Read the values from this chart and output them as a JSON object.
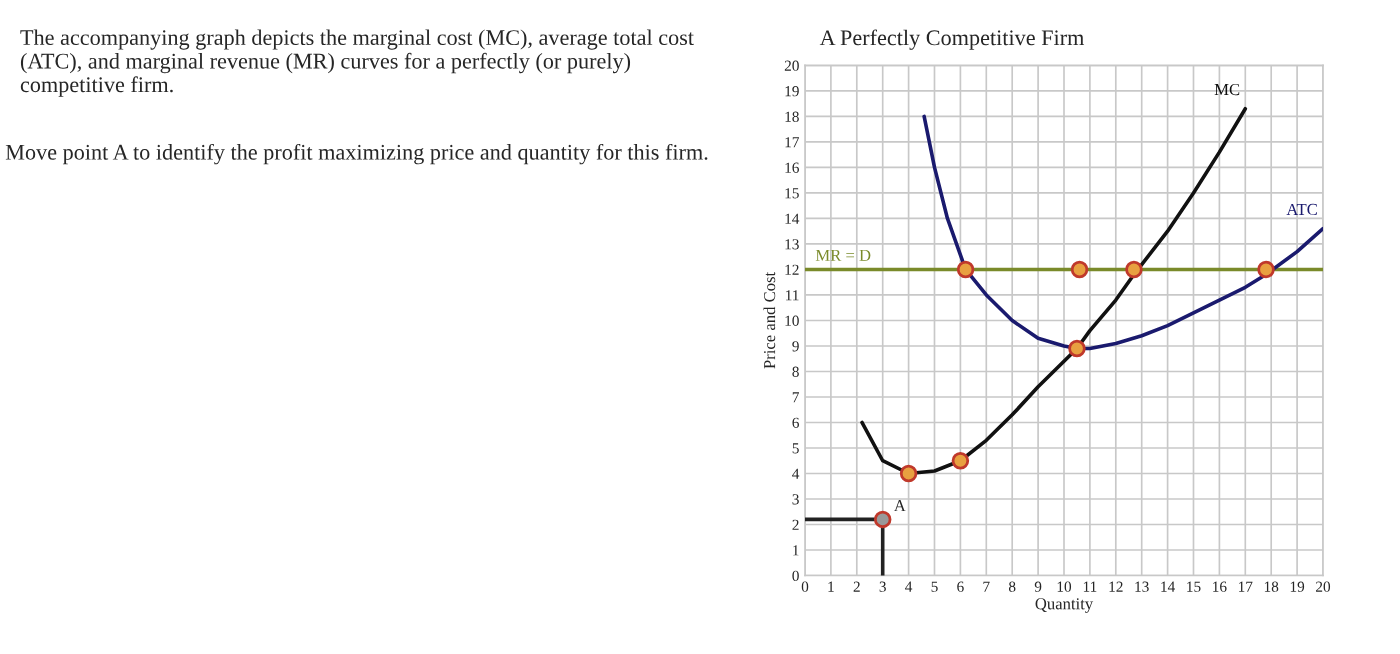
{
  "chart_data": {
    "type": "line",
    "title": "A Perfectly Competitive Firm",
    "xlabel": "Quantity",
    "ylabel": "Price and Cost",
    "xlim": [
      0,
      20
    ],
    "ylim": [
      0,
      20
    ],
    "xticks": [
      0,
      1,
      2,
      3,
      4,
      5,
      6,
      7,
      8,
      9,
      10,
      11,
      12,
      13,
      14,
      15,
      16,
      17,
      18,
      19,
      20
    ],
    "yticks": [
      0,
      1,
      2,
      3,
      4,
      5,
      6,
      7,
      8,
      9,
      10,
      11,
      12,
      13,
      14,
      15,
      16,
      17,
      18,
      19,
      20
    ],
    "grid": true,
    "legend": false,
    "series": [
      {
        "name": "MR = D",
        "color": "#7a8a2a",
        "x": [
          0,
          20
        ],
        "values": [
          12,
          12
        ]
      },
      {
        "name": "MC",
        "color": "#111111",
        "x": [
          2.2,
          3,
          4,
          5,
          6,
          7,
          8,
          9,
          10,
          10.5,
          11,
          12,
          12.7,
          14,
          15,
          16,
          17
        ],
        "values": [
          6,
          4.5,
          4,
          4.1,
          4.5,
          5.3,
          6.3,
          7.4,
          8.4,
          8.9,
          9.6,
          10.8,
          11.8,
          13.5,
          15,
          16.6,
          18.3
        ]
      },
      {
        "name": "ATC",
        "color": "#1a1a6e",
        "x": [
          4.6,
          5,
          5.5,
          6.2,
          7,
          8,
          9,
          10,
          10.5,
          11,
          12,
          13,
          14,
          15,
          16,
          17,
          17.8,
          19,
          20
        ],
        "values": [
          18,
          16,
          14,
          12,
          11,
          10,
          9.3,
          9,
          8.9,
          8.9,
          9.1,
          9.4,
          9.8,
          10.3,
          10.8,
          11.3,
          11.8,
          12.7,
          13.6
        ]
      },
      {
        "color": "#222222",
        "x": [
          0,
          3,
          3
        ],
        "values": [
          2.2,
          2.2,
          0
        ]
      },
      {
        "type": "scatter",
        "color": "#e8a040",
        "marker": "circle",
        "x": [
          6.2,
          10.6,
          12.7,
          17.8,
          10.5,
          4,
          6
        ],
        "values": [
          12,
          12,
          12,
          12,
          8.9,
          4,
          4.5
        ]
      },
      {
        "type": "scatter",
        "color": "#999999",
        "marker": "circle",
        "x": [
          3
        ],
        "values": [
          2.2
        ]
      }
    ],
    "annotations": [
      "The accompanying graph depicts the marginal cost (MC), average total cost (ATC), and marginal revenue (MR) curves for a perfectly (or purely) competitive firm.",
      "Move point A to identify the profit maximizing price and quantity for this firm.",
      {
        "text": "A",
        "x": 3,
        "y": 2.2
      }
    ]
  }
}
